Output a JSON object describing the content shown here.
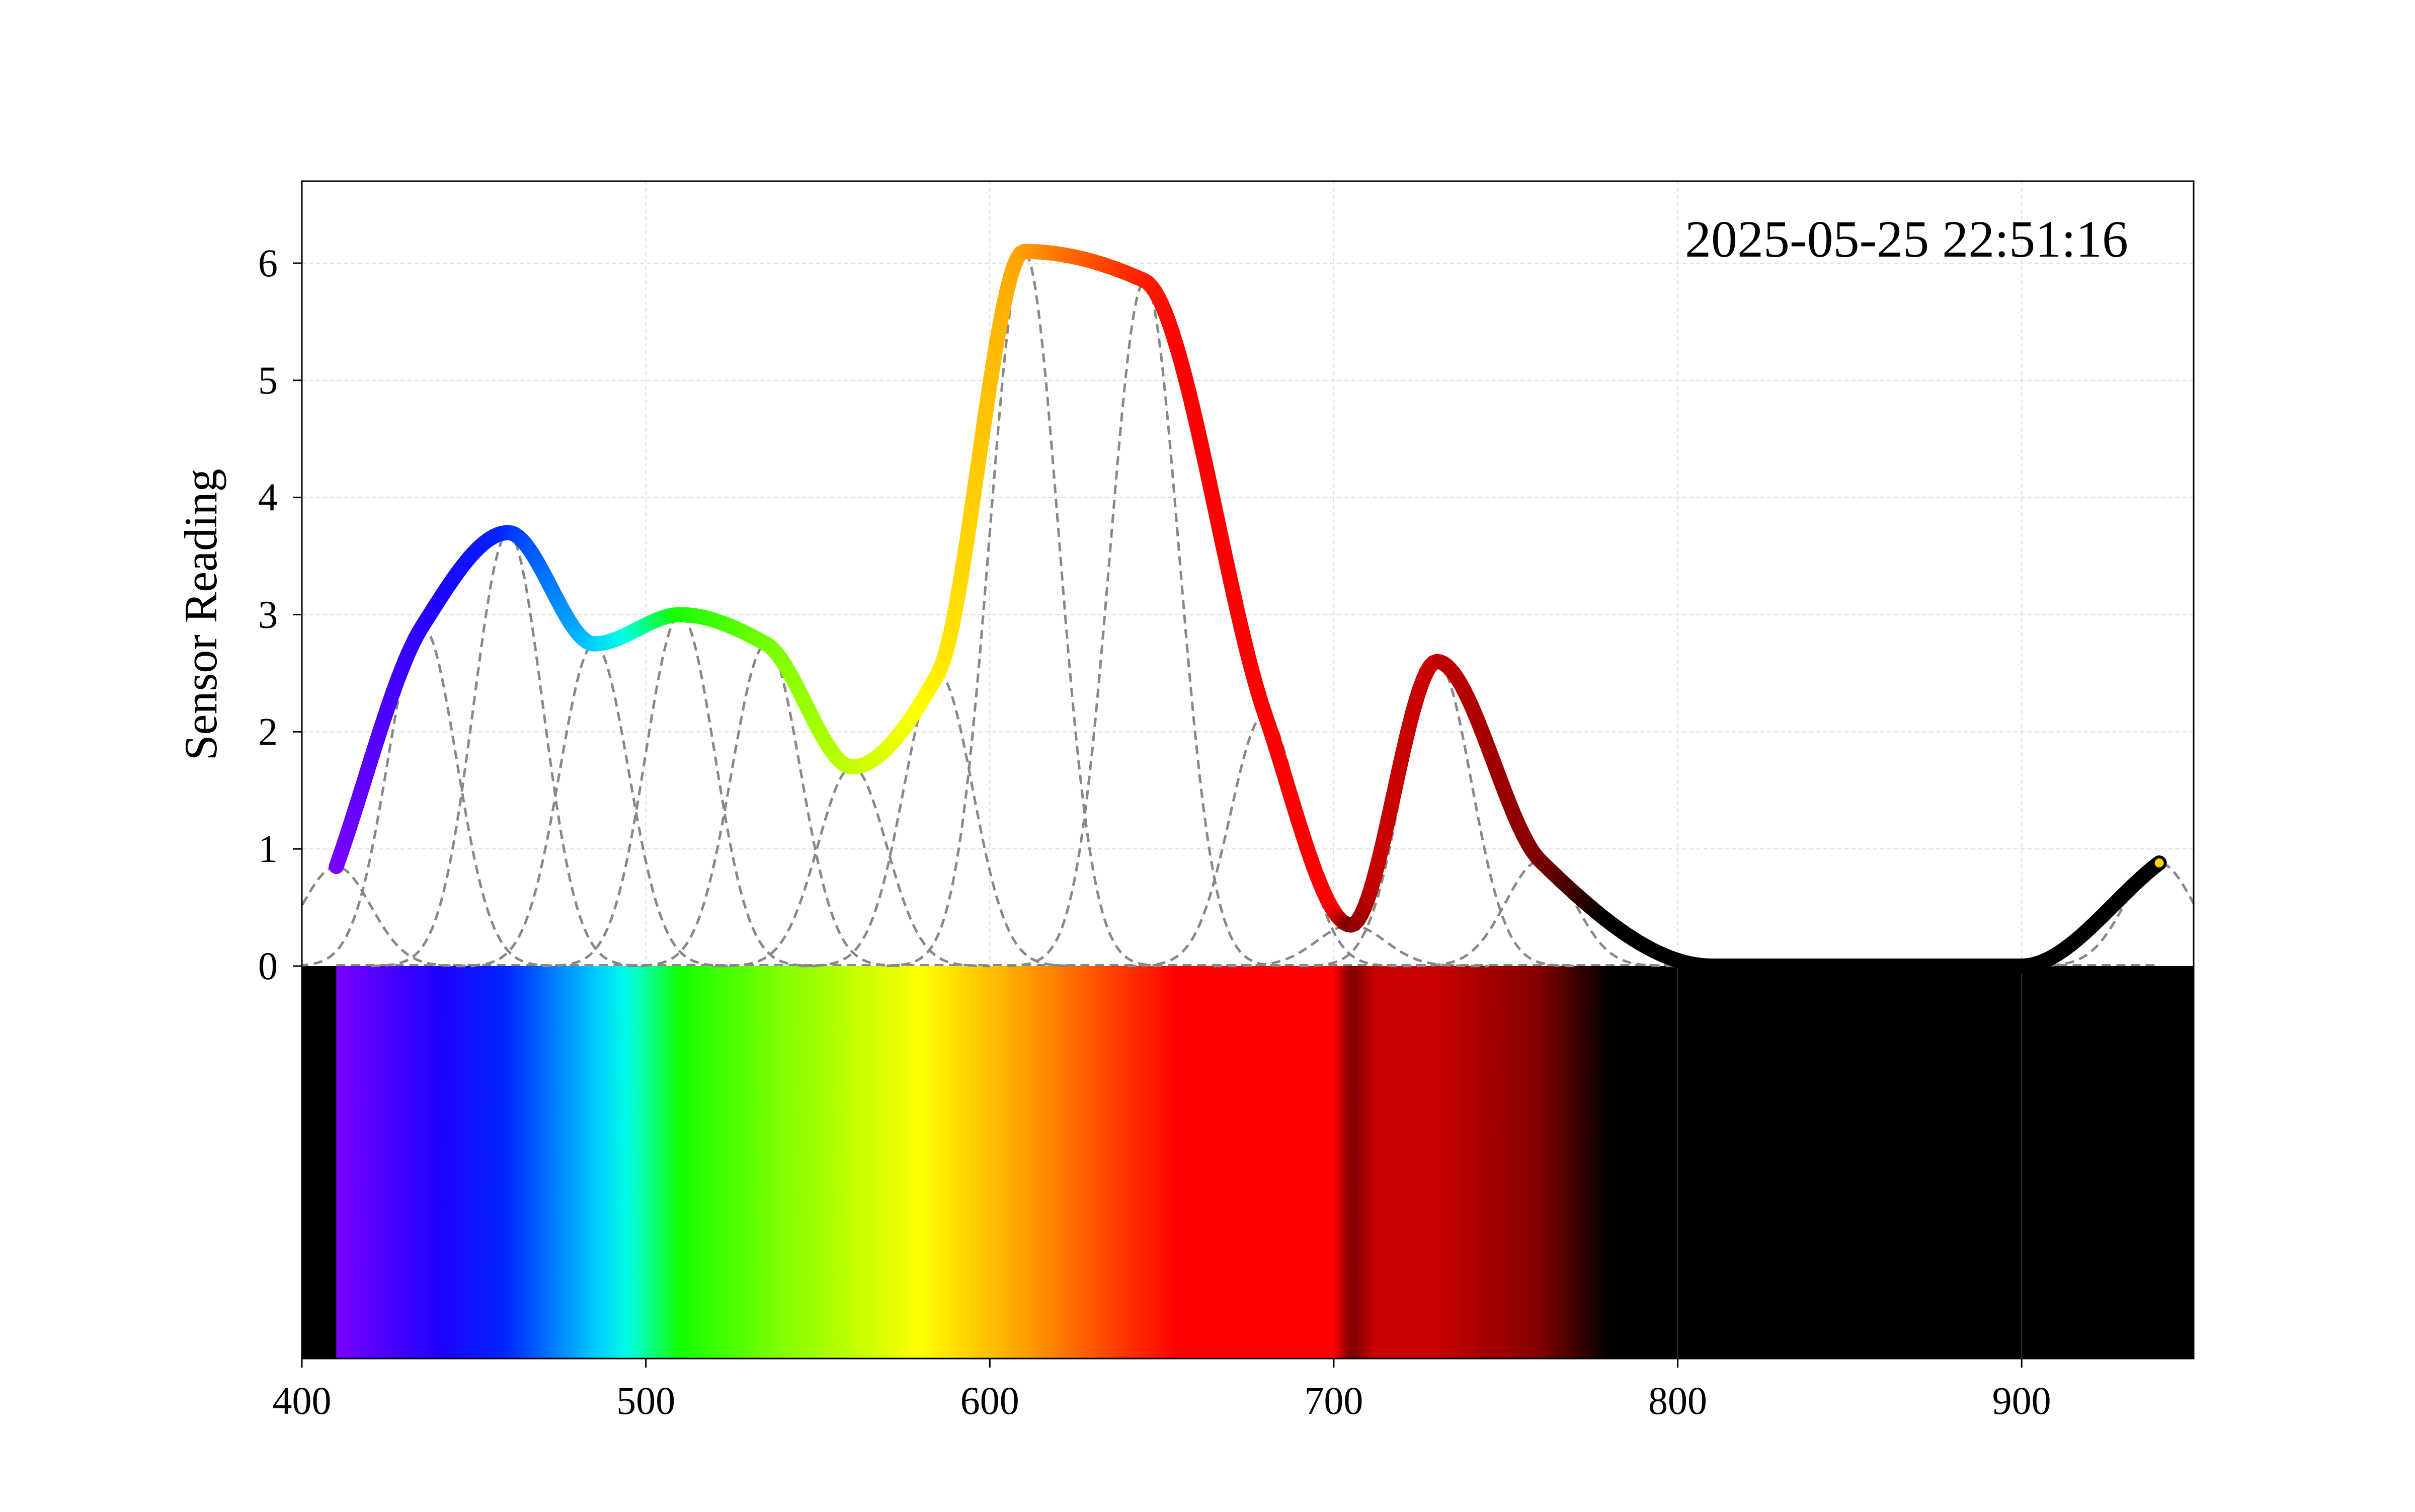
{
  "chart_data": {
    "type": "line",
    "title": "",
    "xlabel": "",
    "ylabel": "Sensor Reading",
    "annotation": "2025-05-25 22:51:16",
    "xlim": [
      400,
      950
    ],
    "ylim": [
      0,
      6.7
    ],
    "grid": true,
    "x_ticks": [
      400,
      500,
      600,
      700,
      800,
      900
    ],
    "y_ticks": [
      0,
      1,
      2,
      3,
      4,
      5,
      6
    ],
    "channels": [
      {
        "x": 410,
        "y": 0.85
      },
      {
        "x": 435,
        "y": 2.9
      },
      {
        "x": 460,
        "y": 3.7
      },
      {
        "x": 485,
        "y": 2.75
      },
      {
        "x": 510,
        "y": 3.0
      },
      {
        "x": 535,
        "y": 2.75
      },
      {
        "x": 560,
        "y": 1.7
      },
      {
        "x": 585,
        "y": 2.5
      },
      {
        "x": 610,
        "y": 6.1
      },
      {
        "x": 645,
        "y": 5.85
      },
      {
        "x": 680,
        "y": 2.15
      },
      {
        "x": 705,
        "y": 0.35
      },
      {
        "x": 730,
        "y": 2.6
      },
      {
        "x": 760,
        "y": 0.9
      },
      {
        "x": 810,
        "y": 0.0
      },
      {
        "x": 860,
        "y": 0.0
      },
      {
        "x": 900,
        "y": 0.0
      },
      {
        "x": 940,
        "y": 0.88
      }
    ],
    "spectrum_band": {
      "start": 410,
      "end": 780
    },
    "colors": {
      "grid": "#dddddd",
      "dashed": "#888888",
      "band_background": "#000000",
      "endpoint_marker": "#ffd700"
    }
  }
}
